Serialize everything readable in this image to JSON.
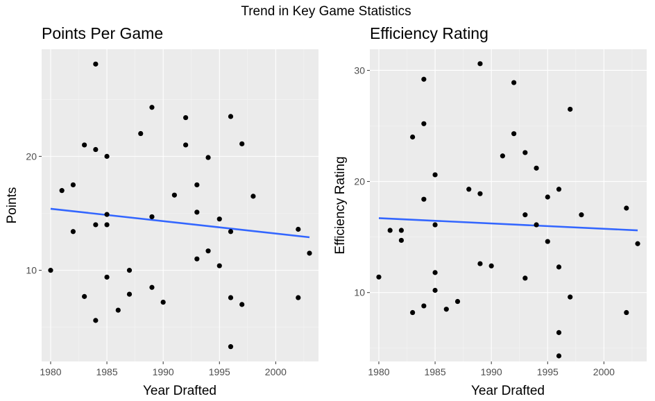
{
  "suptitle": "Trend in Key Game Statistics",
  "chart_data": [
    {
      "type": "scatter",
      "title": "Points Per Game",
      "xlabel": "Year Drafted",
      "ylabel": "Points",
      "xlim": [
        1979.2,
        2003.8
      ],
      "ylim": [
        2.0,
        29.4
      ],
      "x_ticks": [
        1980,
        1985,
        1990,
        1995,
        2000
      ],
      "y_ticks": [
        10,
        20
      ],
      "grid": true,
      "trend_line": {
        "color": "#3366ff",
        "x": [
          1980,
          2003
        ],
        "y": [
          15.4,
          12.9
        ]
      },
      "points": [
        {
          "x": 1980,
          "y": 10.0
        },
        {
          "x": 1981,
          "y": 17.0
        },
        {
          "x": 1982,
          "y": 17.5
        },
        {
          "x": 1982,
          "y": 13.4
        },
        {
          "x": 1983,
          "y": 21.0
        },
        {
          "x": 1983,
          "y": 7.7
        },
        {
          "x": 1984,
          "y": 28.1
        },
        {
          "x": 1984,
          "y": 20.6
        },
        {
          "x": 1984,
          "y": 14.0
        },
        {
          "x": 1984,
          "y": 5.6
        },
        {
          "x": 1985,
          "y": 20.0
        },
        {
          "x": 1985,
          "y": 14.9
        },
        {
          "x": 1985,
          "y": 14.0
        },
        {
          "x": 1985,
          "y": 9.4
        },
        {
          "x": 1986,
          "y": 6.5
        },
        {
          "x": 1987,
          "y": 10.0
        },
        {
          "x": 1987,
          "y": 7.9
        },
        {
          "x": 1988,
          "y": 22.0
        },
        {
          "x": 1989,
          "y": 24.3
        },
        {
          "x": 1989,
          "y": 14.7
        },
        {
          "x": 1989,
          "y": 8.5
        },
        {
          "x": 1990,
          "y": 7.2
        },
        {
          "x": 1991,
          "y": 16.6
        },
        {
          "x": 1992,
          "y": 23.4
        },
        {
          "x": 1992,
          "y": 21.0
        },
        {
          "x": 1993,
          "y": 17.5
        },
        {
          "x": 1993,
          "y": 15.1
        },
        {
          "x": 1993,
          "y": 11.0
        },
        {
          "x": 1994,
          "y": 19.9
        },
        {
          "x": 1994,
          "y": 11.7
        },
        {
          "x": 1995,
          "y": 14.5
        },
        {
          "x": 1995,
          "y": 10.4
        },
        {
          "x": 1996,
          "y": 23.5
        },
        {
          "x": 1996,
          "y": 13.4
        },
        {
          "x": 1996,
          "y": 7.6
        },
        {
          "x": 1996,
          "y": 3.3
        },
        {
          "x": 1997,
          "y": 21.1
        },
        {
          "x": 1997,
          "y": 7.0
        },
        {
          "x": 1998,
          "y": 16.5
        },
        {
          "x": 2002,
          "y": 13.6
        },
        {
          "x": 2002,
          "y": 7.6
        },
        {
          "x": 2003,
          "y": 11.5
        }
      ]
    },
    {
      "type": "scatter",
      "title": "Efficiency Rating",
      "xlabel": "Year Drafted",
      "ylabel": "Efficiency Rating",
      "xlim": [
        1979.2,
        2003.8
      ],
      "ylim": [
        3.8,
        31.9
      ],
      "x_ticks": [
        1980,
        1985,
        1990,
        1995,
        2000
      ],
      "y_ticks": [
        10,
        20,
        30
      ],
      "grid": true,
      "trend_line": {
        "color": "#3366ff",
        "x": [
          1980,
          2003
        ],
        "y": [
          16.7,
          15.6
        ]
      },
      "points": [
        {
          "x": 1980,
          "y": 11.4
        },
        {
          "x": 1981,
          "y": 15.6
        },
        {
          "x": 1982,
          "y": 15.6
        },
        {
          "x": 1982,
          "y": 14.7
        },
        {
          "x": 1983,
          "y": 24.0
        },
        {
          "x": 1983,
          "y": 8.2
        },
        {
          "x": 1984,
          "y": 29.2
        },
        {
          "x": 1984,
          "y": 25.2
        },
        {
          "x": 1984,
          "y": 18.4
        },
        {
          "x": 1984,
          "y": 8.8
        },
        {
          "x": 1985,
          "y": 20.6
        },
        {
          "x": 1985,
          "y": 16.1
        },
        {
          "x": 1985,
          "y": 11.8
        },
        {
          "x": 1985,
          "y": 10.2
        },
        {
          "x": 1986,
          "y": 8.5
        },
        {
          "x": 1987,
          "y": 9.2
        },
        {
          "x": 1988,
          "y": 19.3
        },
        {
          "x": 1989,
          "y": 30.6
        },
        {
          "x": 1989,
          "y": 18.9
        },
        {
          "x": 1989,
          "y": 12.6
        },
        {
          "x": 1990,
          "y": 12.4
        },
        {
          "x": 1991,
          "y": 22.3
        },
        {
          "x": 1992,
          "y": 28.9
        },
        {
          "x": 1992,
          "y": 24.3
        },
        {
          "x": 1993,
          "y": 22.6
        },
        {
          "x": 1993,
          "y": 17.0
        },
        {
          "x": 1993,
          "y": 11.3
        },
        {
          "x": 1994,
          "y": 21.2
        },
        {
          "x": 1994,
          "y": 16.1
        },
        {
          "x": 1995,
          "y": 18.6
        },
        {
          "x": 1995,
          "y": 14.6
        },
        {
          "x": 1996,
          "y": 19.3
        },
        {
          "x": 1996,
          "y": 12.3
        },
        {
          "x": 1996,
          "y": 6.4
        },
        {
          "x": 1996,
          "y": 4.3
        },
        {
          "x": 1997,
          "y": 26.5
        },
        {
          "x": 1997,
          "y": 9.6
        },
        {
          "x": 1998,
          "y": 17.0
        },
        {
          "x": 2002,
          "y": 17.6
        },
        {
          "x": 2002,
          "y": 8.2
        },
        {
          "x": 2003,
          "y": 14.4
        }
      ]
    }
  ]
}
